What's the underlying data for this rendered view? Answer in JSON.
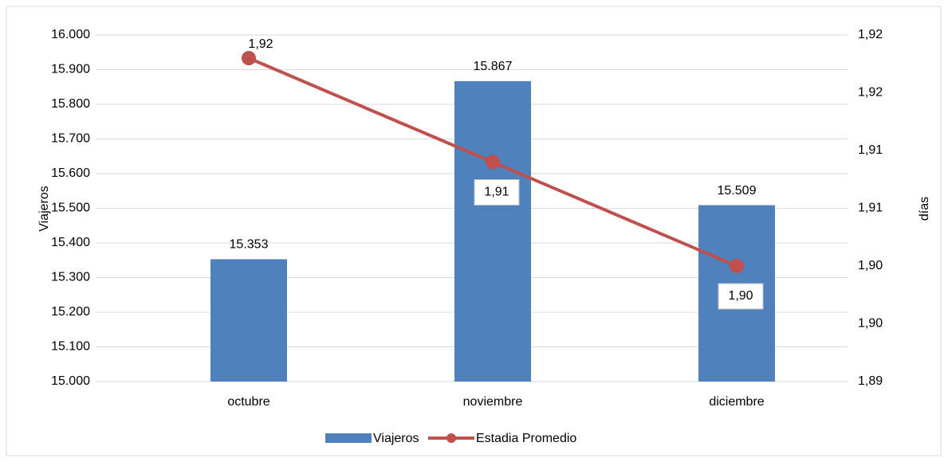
{
  "chart_data": {
    "type": "bar-line",
    "categories": [
      "octubre",
      "noviembre",
      "diciembre"
    ],
    "series": [
      {
        "name": "Viajeros",
        "type": "bar",
        "color": "#4f81bd",
        "values": [
          15353,
          15867,
          15509
        ],
        "value_labels": [
          "15.353",
          "15.867",
          "15.509"
        ]
      },
      {
        "name": "Estadia Promedio",
        "type": "line",
        "axis": "y2",
        "color": "#c0504d",
        "values": [
          1.918,
          1.909,
          1.9
        ],
        "value_labels": [
          "1,92",
          "1,91",
          "1,90"
        ]
      }
    ],
    "ylabel": "Viajeros",
    "y2label": "días",
    "ylim": [
      15000,
      16000
    ],
    "yticks": [
      {
        "value": 15000,
        "label": "15.000"
      },
      {
        "value": 15100,
        "label": "15.100"
      },
      {
        "value": 15200,
        "label": "15.200"
      },
      {
        "value": 15300,
        "label": "15.300"
      },
      {
        "value": 15400,
        "label": "15.400"
      },
      {
        "value": 15500,
        "label": "15.500"
      },
      {
        "value": 15600,
        "label": "15.600"
      },
      {
        "value": 15700,
        "label": "15.700"
      },
      {
        "value": 15800,
        "label": "15.800"
      },
      {
        "value": 15900,
        "label": "15.900"
      },
      {
        "value": 16000,
        "label": "16.000"
      }
    ],
    "y2lim": [
      1.89,
      1.92
    ],
    "y2ticks": [
      {
        "value": 1.89,
        "label": "1,89"
      },
      {
        "value": 1.895,
        "label": "1,90"
      },
      {
        "value": 1.9,
        "label": "1,90"
      },
      {
        "value": 1.905,
        "label": "1,91"
      },
      {
        "value": 1.91,
        "label": "1,91"
      },
      {
        "value": 1.915,
        "label": "1,92"
      },
      {
        "value": 1.92,
        "label": "1,92"
      }
    ],
    "grid": true
  }
}
